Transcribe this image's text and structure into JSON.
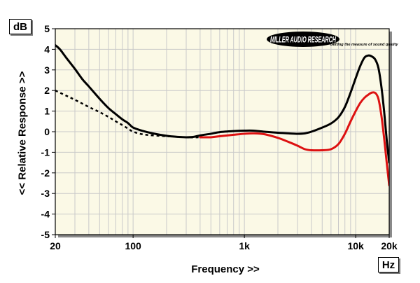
{
  "chart_data": {
    "type": "line",
    "title": "",
    "xlabel": "Frequency >>",
    "ylabel": "<< Relative Response >>",
    "x_unit": "Hz",
    "y_unit": "dB",
    "xscale": "log",
    "xlim": [
      20,
      20000
    ],
    "ylim": [
      -5,
      5
    ],
    "x_ticks": [
      {
        "value": 20,
        "label": "20"
      },
      {
        "value": 100,
        "label": "100"
      },
      {
        "value": 1000,
        "label": "1k"
      },
      {
        "value": 10000,
        "label": "10k"
      },
      {
        "value": 20000,
        "label": "20k"
      }
    ],
    "y_ticks": [
      5,
      4,
      3,
      2,
      1,
      0,
      -1,
      -2,
      -3,
      -4,
      -5
    ],
    "grid": true,
    "logo": {
      "main": "MILLER AUDIO RESEARCH",
      "tagline": "Getting the measure of sound quality"
    },
    "colors": {
      "plot_bg": "#fbf9e6",
      "grid": "#c9c9c9",
      "black_series": "#000000",
      "red_series": "#dd1111"
    },
    "series": [
      {
        "style": "solid",
        "color": "#000000",
        "x": [
          20,
          22,
          25,
          30,
          35,
          40,
          50,
          60,
          70,
          80,
          90,
          100,
          120,
          150,
          200,
          250,
          300,
          350,
          400,
          500,
          600,
          800,
          1000,
          1200,
          1500,
          2000,
          2500,
          3000,
          3500,
          4000,
          5000,
          6000,
          7000,
          8000,
          9000,
          10000,
          11000,
          12000,
          13000,
          14000,
          15000,
          16000,
          17000,
          18000,
          19000,
          20000
        ],
        "y": [
          4.2,
          4.0,
          3.6,
          3.05,
          2.55,
          2.2,
          1.6,
          1.15,
          0.85,
          0.6,
          0.42,
          0.2,
          0.05,
          -0.08,
          -0.2,
          -0.25,
          -0.27,
          -0.25,
          -0.18,
          -0.1,
          -0.02,
          0.03,
          0.05,
          0.05,
          0.0,
          -0.05,
          -0.08,
          -0.1,
          -0.08,
          0.0,
          0.2,
          0.4,
          0.7,
          1.2,
          1.9,
          2.6,
          3.2,
          3.6,
          3.7,
          3.65,
          3.5,
          3.1,
          2.2,
          1.0,
          -0.4,
          -1.5
        ]
      },
      {
        "style": "dashed",
        "color": "#000000",
        "x": [
          20,
          25,
          30,
          40,
          50,
          60,
          70,
          80,
          90,
          100,
          120,
          150,
          200,
          250,
          300,
          350,
          400
        ],
        "y": [
          2.0,
          1.75,
          1.55,
          1.2,
          0.95,
          0.72,
          0.5,
          0.32,
          0.15,
          0.0,
          -0.12,
          -0.18,
          -0.22,
          -0.25,
          -0.27,
          -0.28,
          -0.27
        ]
      },
      {
        "style": "solid",
        "color": "#dd1111",
        "x": [
          400,
          500,
          600,
          800,
          1000,
          1200,
          1500,
          2000,
          2500,
          3000,
          3500,
          4000,
          5000,
          6000,
          7000,
          8000,
          9000,
          10000,
          11000,
          12000,
          13000,
          14000,
          15000,
          16000,
          17000,
          18000,
          19000,
          20000
        ],
        "y": [
          -0.27,
          -0.27,
          -0.22,
          -0.15,
          -0.1,
          -0.08,
          -0.12,
          -0.3,
          -0.5,
          -0.68,
          -0.85,
          -0.9,
          -0.9,
          -0.85,
          -0.6,
          -0.1,
          0.5,
          1.0,
          1.4,
          1.65,
          1.8,
          1.9,
          1.88,
          1.6,
          0.8,
          -0.3,
          -1.5,
          -2.6
        ]
      }
    ]
  }
}
